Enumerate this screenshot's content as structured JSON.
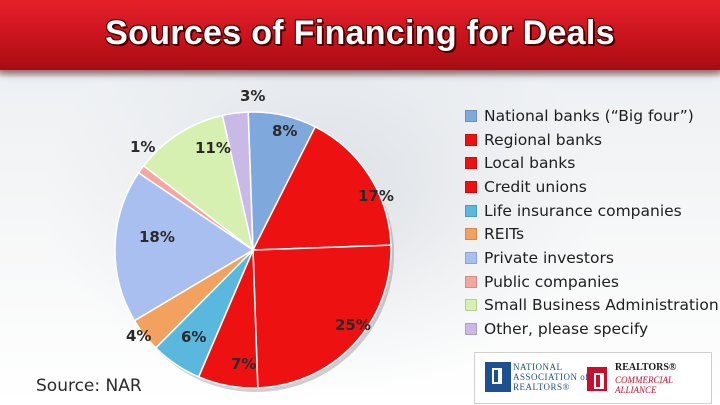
{
  "title": "Sources of Financing for Deals",
  "source_note": "Source: NAR",
  "logos": {
    "nar_line1": "NATIONAL",
    "nar_line2": "ASSOCIATION of",
    "nar_line3": "REALTORS®",
    "partner_line1": "REALTORS®",
    "partner_line2": "COMMERCIAL ALLIANCE"
  },
  "colors": {
    "title_bar": "#d0161f",
    "title_text": "#ffffff"
  },
  "chart_data": {
    "type": "pie",
    "title": "",
    "legend_position": "right",
    "start_angle_deg": -2,
    "direction": "clockwise",
    "slices": [
      {
        "name": "National banks (“Big four”)",
        "value": 8,
        "label": "8%",
        "color": "#7fa8dc"
      },
      {
        "name": "Regional banks",
        "value": 17,
        "label": "17%",
        "color": "#ee1111"
      },
      {
        "name": "Local banks",
        "value": 25,
        "label": "25%",
        "color": "#ee1111"
      },
      {
        "name": "Credit unions",
        "value": 7,
        "label": "7%",
        "color": "#ee1111"
      },
      {
        "name": "Life insurance companies",
        "value": 6,
        "label": "6%",
        "color": "#5ab8de"
      },
      {
        "name": "REITs",
        "value": 4,
        "label": "4%",
        "color": "#f3a15e"
      },
      {
        "name": "Private investors",
        "value": 18,
        "label": "18%",
        "color": "#a9bff0"
      },
      {
        "name": "Public companies",
        "value": 1,
        "label": "1%",
        "color": "#f4a6a0"
      },
      {
        "name": "Small Business Administration",
        "value": 11,
        "label": "11%",
        "color": "#d6f0b2"
      },
      {
        "name": "Other, please specify",
        "value": 3,
        "label": "3%",
        "color": "#c9b9e6"
      }
    ]
  }
}
